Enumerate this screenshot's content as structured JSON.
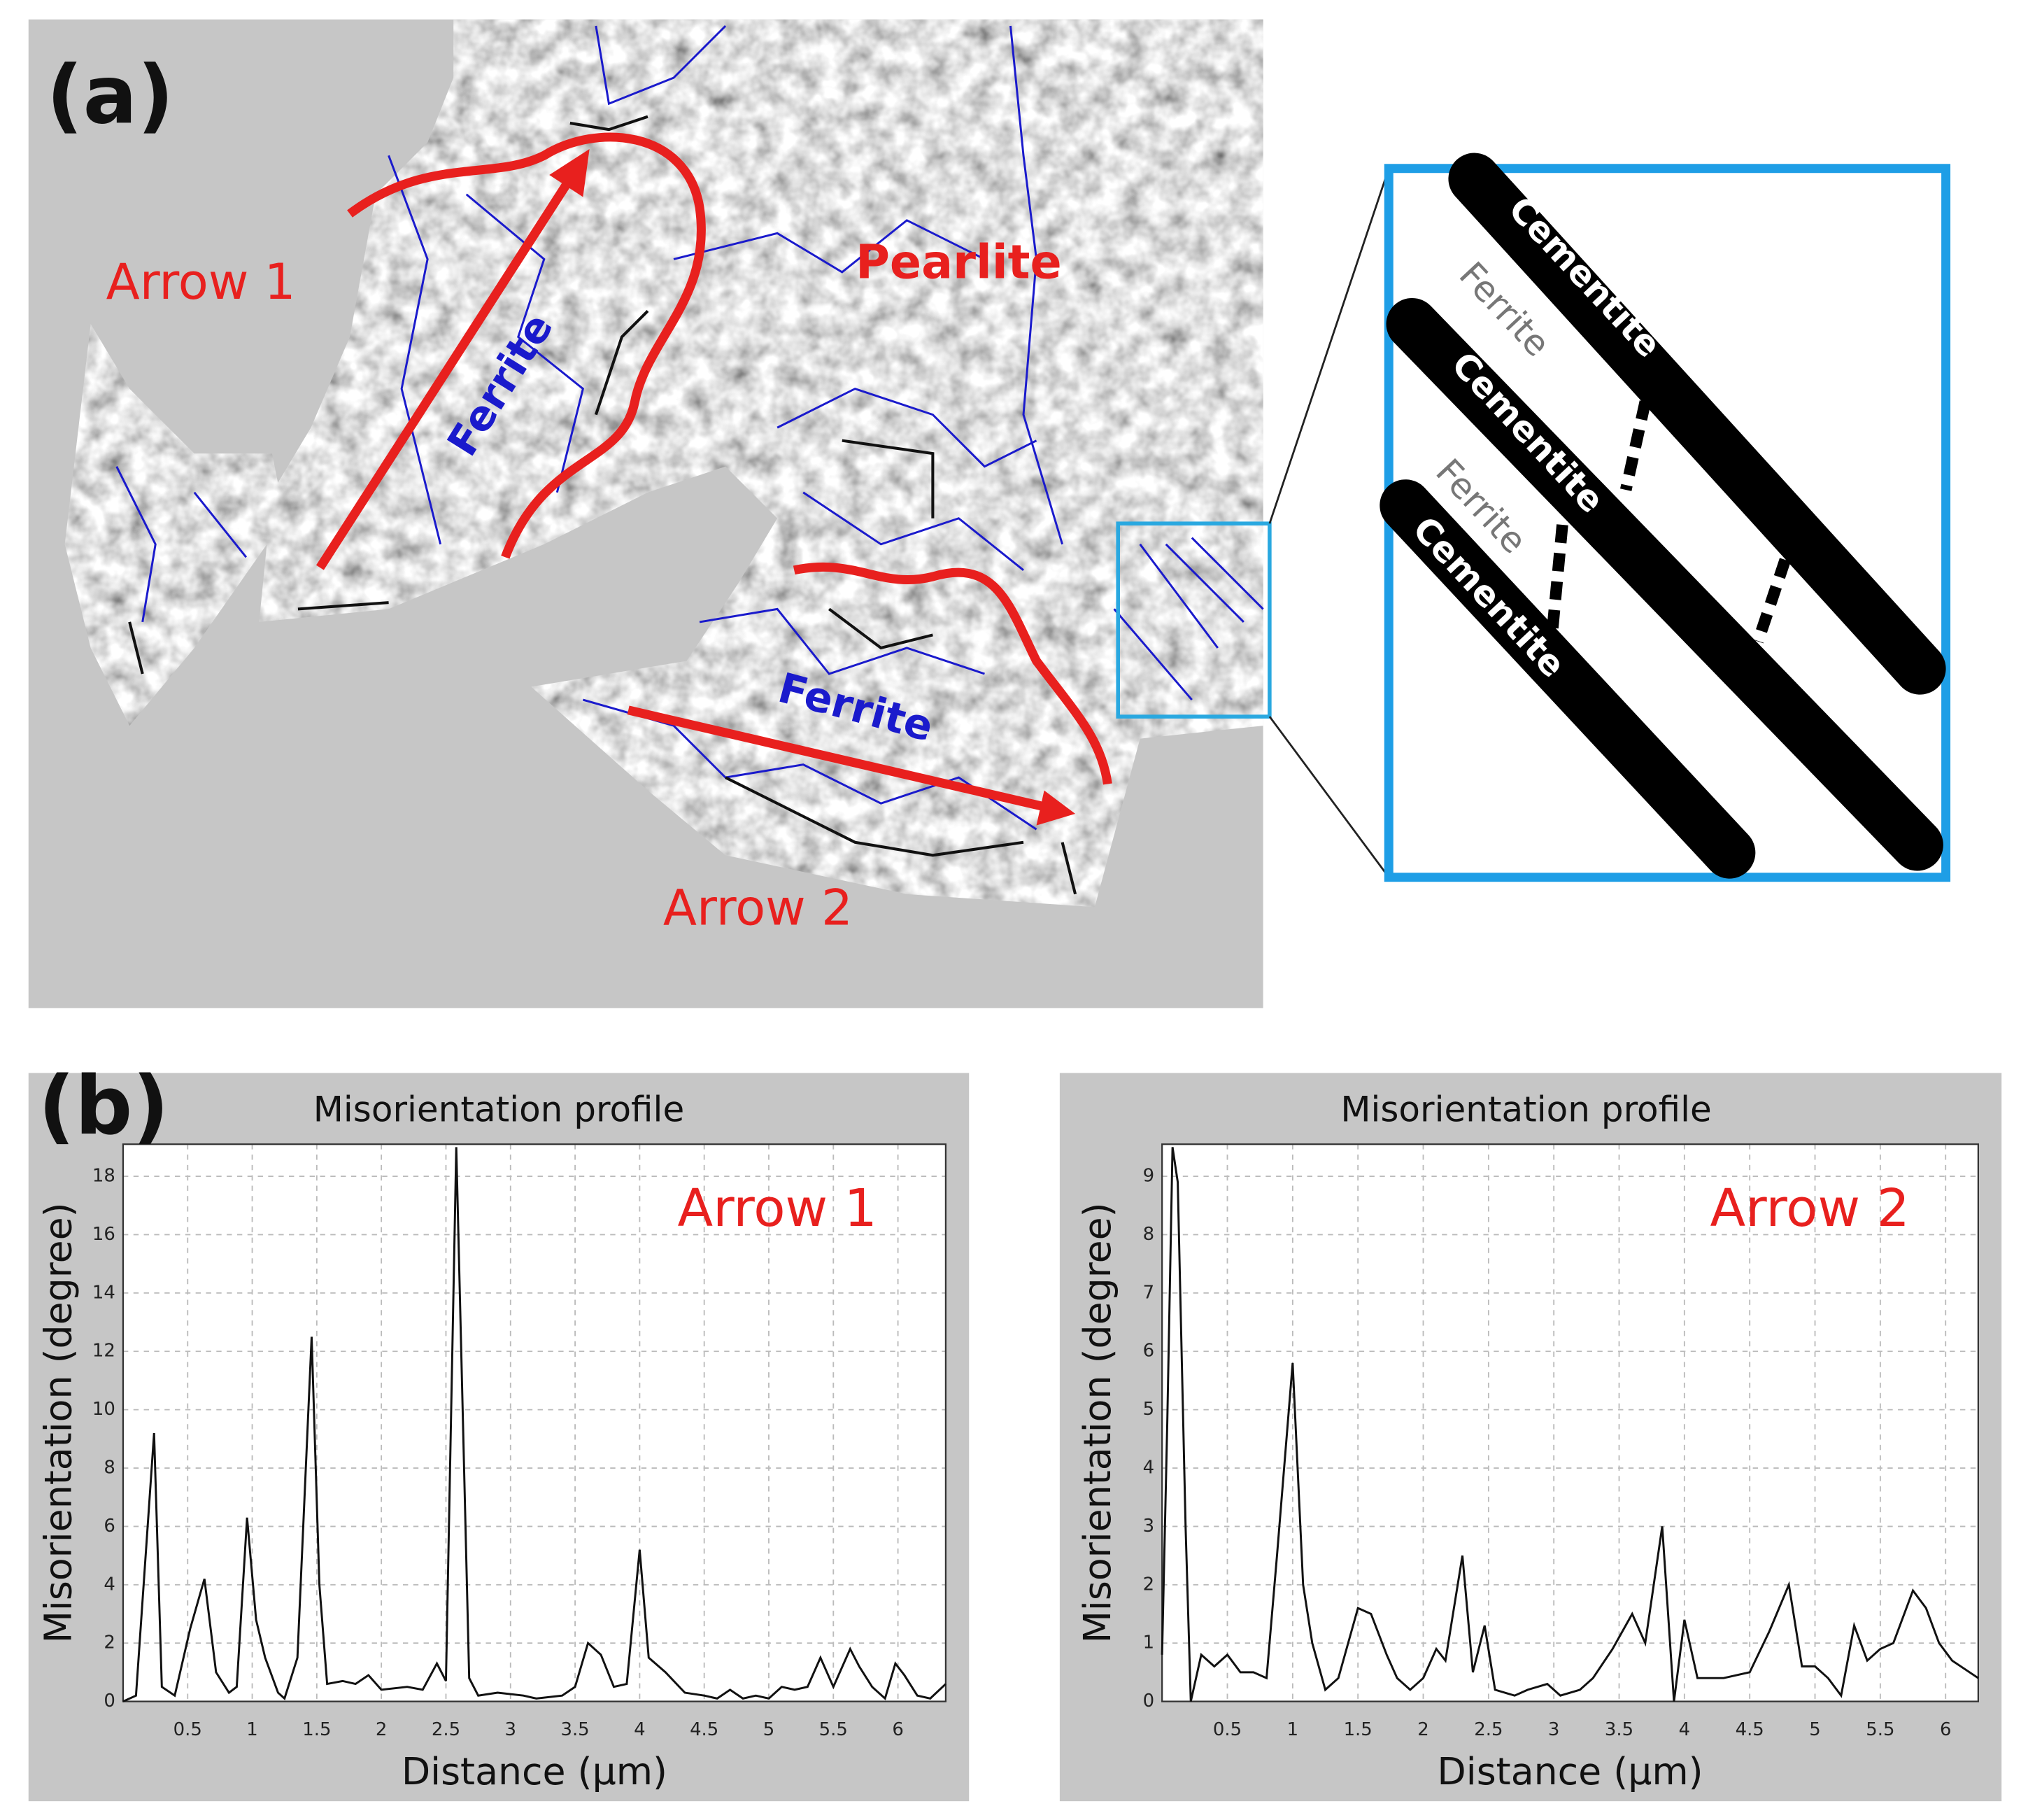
{
  "figure_a": {
    "panel_label": "(a)",
    "labels": [
      "Arrow 1",
      "Pearlite",
      "Ferrite",
      "Ferrite",
      "Arrow 2"
    ],
    "inset_labels": [
      "Cementite",
      "Cementite",
      "Cementite",
      "Ferrite",
      "Ferrite"
    ]
  },
  "panel_b_label": "(b)",
  "chart_data": [
    {
      "type": "line",
      "title": "Misorientation profile",
      "annotation": "Arrow 1",
      "x_label": "Distance (µm)",
      "y_label": "Misorientation (degree)",
      "color": "#111111",
      "grid": true,
      "xlim": [
        0,
        6.37
      ],
      "ylim": [
        0,
        19.1
      ],
      "xticks": [
        0.5,
        1,
        1.5,
        2,
        2.5,
        3,
        3.5,
        4,
        4.5,
        5,
        5.5,
        6
      ],
      "yticks": [
        0,
        2,
        4,
        6,
        8,
        10,
        12,
        14,
        16,
        18
      ],
      "x": [
        0,
        0.1,
        0.24,
        0.3,
        0.4,
        0.52,
        0.63,
        0.72,
        0.82,
        0.88,
        0.96,
        1.03,
        1.1,
        1.2,
        1.25,
        1.35,
        1.46,
        1.52,
        1.58,
        1.7,
        1.8,
        1.9,
        2.0,
        2.2,
        2.32,
        2.43,
        2.5,
        2.58,
        2.68,
        2.75,
        2.9,
        3.1,
        3.2,
        3.4,
        3.5,
        3.6,
        3.7,
        3.8,
        3.9,
        4.0,
        4.07,
        4.2,
        4.35,
        4.5,
        4.6,
        4.7,
        4.8,
        4.9,
        5.0,
        5.1,
        5.2,
        5.3,
        5.4,
        5.5,
        5.63,
        5.7,
        5.8,
        5.9,
        5.98,
        6.05,
        6.15,
        6.25,
        6.37
      ],
      "values": [
        0,
        0.2,
        9.2,
        0.5,
        0.2,
        2.5,
        4.2,
        1.0,
        0.3,
        0.5,
        6.3,
        2.8,
        1.5,
        0.3,
        0.1,
        1.5,
        12.5,
        4.0,
        0.6,
        0.7,
        0.6,
        0.9,
        0.4,
        0.5,
        0.4,
        1.3,
        0.7,
        19.0,
        0.8,
        0.2,
        0.3,
        0.2,
        0.1,
        0.2,
        0.5,
        2.0,
        1.6,
        0.5,
        0.6,
        5.2,
        1.5,
        1.0,
        0.3,
        0.2,
        0.1,
        0.4,
        0.1,
        0.2,
        0.1,
        0.5,
        0.4,
        0.5,
        1.5,
        0.5,
        1.8,
        1.2,
        0.5,
        0.1,
        1.3,
        0.9,
        0.2,
        0.1,
        0.6
      ]
    },
    {
      "type": "line",
      "title": "Misorientation profile",
      "annotation": "Arrow 2",
      "x_label": "Distance (µm)",
      "y_label": "Misorientation (degree)",
      "color": "#111111",
      "grid": true,
      "xlim": [
        0,
        6.25
      ],
      "ylim": [
        0,
        9.55
      ],
      "xticks": [
        0.5,
        1,
        1.5,
        2,
        2.5,
        3,
        3.5,
        4,
        4.5,
        5,
        5.5,
        6
      ],
      "yticks": [
        0,
        1,
        2,
        3,
        4,
        5,
        6,
        7,
        8,
        9
      ],
      "x": [
        0,
        0.04,
        0.08,
        0.12,
        0.18,
        0.22,
        0.3,
        0.4,
        0.5,
        0.6,
        0.7,
        0.8,
        0.88,
        1.0,
        1.08,
        1.15,
        1.25,
        1.35,
        1.5,
        1.6,
        1.72,
        1.8,
        1.9,
        2.0,
        2.1,
        2.17,
        2.3,
        2.38,
        2.47,
        2.55,
        2.7,
        2.8,
        2.95,
        3.05,
        3.2,
        3.3,
        3.45,
        3.6,
        3.7,
        3.83,
        3.92,
        4.0,
        4.1,
        4.3,
        4.5,
        4.65,
        4.8,
        4.9,
        5.0,
        5.1,
        5.2,
        5.3,
        5.4,
        5.5,
        5.6,
        5.75,
        5.85,
        5.95,
        6.05,
        6.25
      ],
      "values": [
        0.8,
        4.8,
        9.5,
        8.9,
        3.0,
        0.0,
        0.8,
        0.6,
        0.8,
        0.5,
        0.5,
        0.4,
        2.5,
        5.8,
        2.0,
        1.0,
        0.2,
        0.4,
        1.6,
        1.5,
        0.8,
        0.4,
        0.2,
        0.4,
        0.9,
        0.7,
        2.5,
        0.5,
        1.3,
        0.2,
        0.1,
        0.2,
        0.3,
        0.1,
        0.2,
        0.4,
        0.9,
        1.5,
        1.0,
        3.0,
        0.0,
        1.4,
        0.4,
        0.4,
        0.5,
        1.2,
        2.0,
        0.6,
        0.6,
        0.4,
        0.1,
        1.3,
        0.7,
        0.9,
        1.0,
        1.9,
        1.6,
        1.0,
        0.7,
        0.4
      ]
    }
  ]
}
